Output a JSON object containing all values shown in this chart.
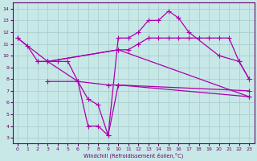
{
  "xlabel": "Windchill (Refroidissement éolien,°C)",
  "bg_color": "#c8e8e8",
  "grid_color": "#a8cece",
  "line_color": "#aa00aa",
  "xlim": [
    -0.5,
    23.5
  ],
  "ylim": [
    2.5,
    14.5
  ],
  "xticks": [
    0,
    1,
    2,
    3,
    4,
    5,
    6,
    7,
    8,
    9,
    10,
    11,
    12,
    13,
    14,
    15,
    16,
    17,
    18,
    19,
    20,
    21,
    22,
    23
  ],
  "yticks": [
    3,
    4,
    5,
    6,
    7,
    8,
    9,
    10,
    11,
    12,
    13,
    14
  ],
  "lines": [
    {
      "x": [
        0,
        1,
        2,
        3,
        10,
        23
      ],
      "y": [
        11.5,
        10.8,
        9.5,
        9.5,
        10.5,
        6.5
      ]
    },
    {
      "x": [
        0,
        3,
        6,
        9,
        10,
        23
      ],
      "y": [
        11.5,
        9.5,
        7.8,
        7.5,
        7.5,
        7.0
      ]
    },
    {
      "x": [
        2,
        3,
        4,
        5,
        6,
        7,
        8,
        9,
        10,
        11,
        12,
        13,
        14,
        15,
        16,
        17,
        20,
        22,
        23
      ],
      "y": [
        9.5,
        9.5,
        9.5,
        9.5,
        7.8,
        6.3,
        5.8,
        3.2,
        11.5,
        11.5,
        12.0,
        13.0,
        13.0,
        13.8,
        13.2,
        12.0,
        10.0,
        9.5,
        8.0
      ]
    },
    {
      "x": [
        3,
        10,
        11,
        12,
        13,
        14,
        15,
        16,
        17,
        18,
        19,
        20,
        21,
        22,
        23
      ],
      "y": [
        9.5,
        10.5,
        10.5,
        11.0,
        11.5,
        11.5,
        11.5,
        11.5,
        11.5,
        11.5,
        11.5,
        11.5,
        11.5,
        9.5,
        8.0
      ]
    },
    {
      "x": [
        3,
        6,
        7,
        8,
        9,
        10,
        23
      ],
      "y": [
        7.8,
        7.8,
        4.0,
        4.0,
        3.2,
        7.5,
        6.5
      ]
    }
  ]
}
